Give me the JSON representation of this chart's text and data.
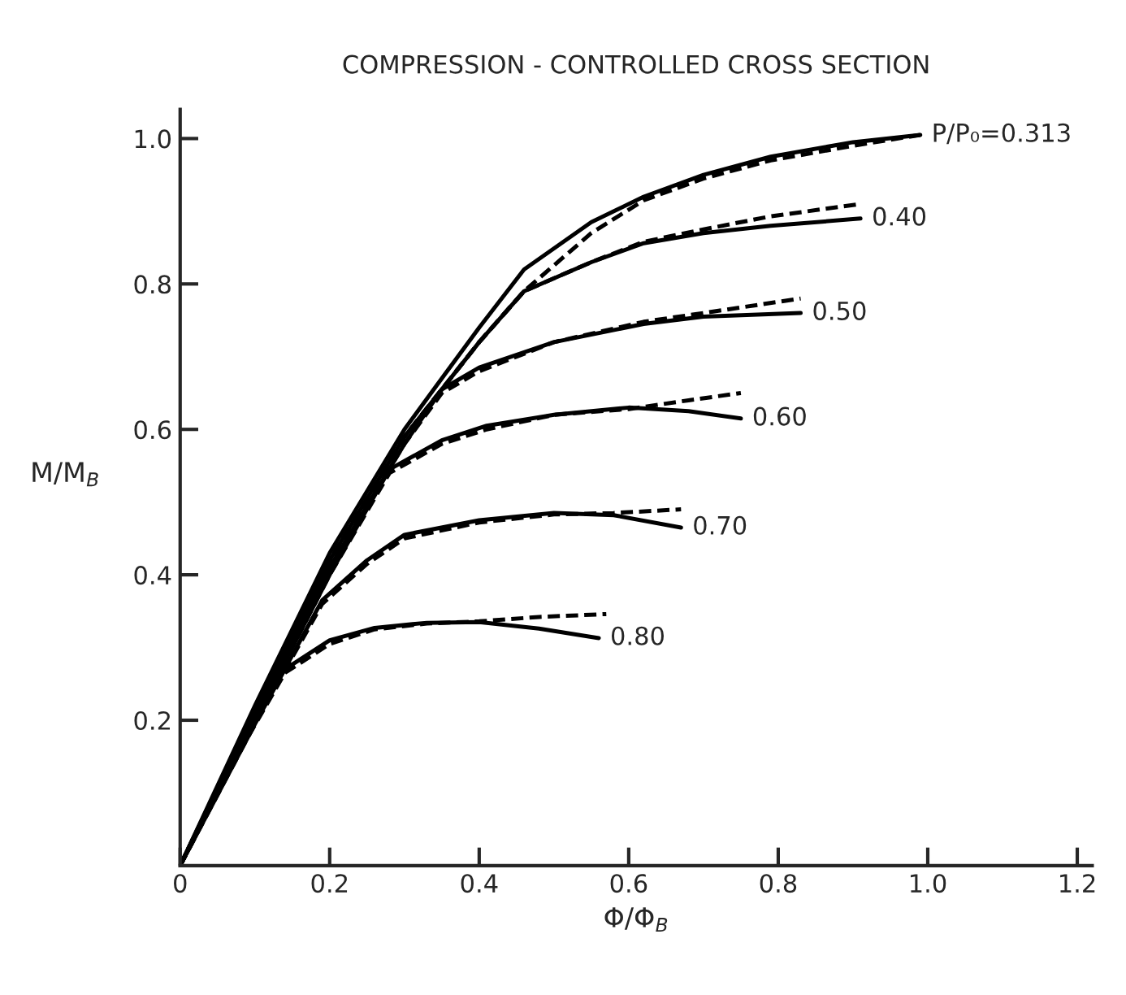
{
  "chart_data": {
    "type": "line",
    "title": "COMPRESSION - CONTROLLED CROSS SECTION",
    "xlabel": "Φ/Φ$_{B}$",
    "ylabel": "M/M$_{B}$",
    "xlim": [
      0,
      1.22
    ],
    "ylim": [
      0,
      1.04
    ],
    "xticks": [
      {
        "value": 0,
        "label": "0"
      },
      0.2,
      0.4,
      0.6,
      0.8,
      {
        "value": 1.0,
        "label": "1.0"
      },
      1.2
    ],
    "yticks": [
      0.2,
      0.4,
      0.6,
      0.8,
      {
        "value": 1.0,
        "label": "1.0"
      }
    ],
    "grid": false,
    "legend": false,
    "marker": "none",
    "series": [
      {
        "name": "P/P₀=0.313",
        "color": "#000000",
        "line_style": "solid",
        "x": [
          0,
          0.1,
          0.2,
          0.3,
          0.35,
          0.4,
          0.46,
          0.55,
          0.62,
          0.7,
          0.79,
          0.9,
          0.99
        ],
        "values": [
          0,
          0.22,
          0.43,
          0.6,
          0.67,
          0.74,
          0.82,
          0.885,
          0.92,
          0.95,
          0.975,
          0.995,
          1.005
        ]
      },
      {
        "color": "#000000",
        "line_style": "dashed",
        "x": [
          0,
          0.1,
          0.2,
          0.3,
          0.4,
          0.46,
          0.55,
          0.62,
          0.7,
          0.79,
          0.9,
          0.99
        ],
        "values": [
          0,
          0.21,
          0.42,
          0.59,
          0.72,
          0.79,
          0.87,
          0.915,
          0.945,
          0.97,
          0.99,
          1.005
        ]
      },
      {
        "name": "0.40",
        "color": "#000000",
        "line_style": "solid",
        "x": [
          0,
          0.1,
          0.2,
          0.3,
          0.4,
          0.46,
          0.55,
          0.62,
          0.7,
          0.79,
          0.91
        ],
        "values": [
          0,
          0.215,
          0.42,
          0.59,
          0.72,
          0.79,
          0.83,
          0.856,
          0.87,
          0.88,
          0.89
        ]
      },
      {
        "color": "#000000",
        "line_style": "dashed",
        "x": [
          0,
          0.1,
          0.2,
          0.3,
          0.4,
          0.46,
          0.55,
          0.62,
          0.7,
          0.79,
          0.91
        ],
        "values": [
          0,
          0.215,
          0.42,
          0.59,
          0.72,
          0.79,
          0.83,
          0.858,
          0.875,
          0.893,
          0.91
        ]
      },
      {
        "name": "0.50",
        "color": "#000000",
        "line_style": "solid",
        "x": [
          0,
          0.1,
          0.2,
          0.3,
          0.35,
          0.4,
          0.5,
          0.62,
          0.7,
          0.83
        ],
        "values": [
          0,
          0.21,
          0.41,
          0.58,
          0.655,
          0.685,
          0.72,
          0.745,
          0.755,
          0.76
        ]
      },
      {
        "color": "#000000",
        "line_style": "dashed",
        "x": [
          0,
          0.1,
          0.2,
          0.3,
          0.35,
          0.4,
          0.5,
          0.62,
          0.7,
          0.83
        ],
        "values": [
          0,
          0.21,
          0.41,
          0.58,
          0.65,
          0.68,
          0.72,
          0.748,
          0.76,
          0.78
        ]
      },
      {
        "name": "0.60",
        "color": "#000000",
        "line_style": "solid",
        "x": [
          0,
          0.1,
          0.2,
          0.28,
          0.35,
          0.41,
          0.5,
          0.6,
          0.68,
          0.75
        ],
        "values": [
          0,
          0.2,
          0.4,
          0.545,
          0.585,
          0.605,
          0.62,
          0.63,
          0.625,
          0.615
        ]
      },
      {
        "color": "#000000",
        "line_style": "dashed",
        "x": [
          0,
          0.1,
          0.2,
          0.28,
          0.35,
          0.41,
          0.5,
          0.6,
          0.68,
          0.75
        ],
        "values": [
          0,
          0.2,
          0.4,
          0.54,
          0.58,
          0.6,
          0.62,
          0.628,
          0.64,
          0.65
        ]
      },
      {
        "name": "0.70",
        "color": "#000000",
        "line_style": "solid",
        "x": [
          0,
          0.1,
          0.19,
          0.25,
          0.3,
          0.4,
          0.5,
          0.58,
          0.67
        ],
        "values": [
          0,
          0.195,
          0.365,
          0.42,
          0.455,
          0.475,
          0.485,
          0.482,
          0.465
        ]
      },
      {
        "color": "#000000",
        "line_style": "dashed",
        "x": [
          0,
          0.1,
          0.19,
          0.25,
          0.3,
          0.4,
          0.5,
          0.58,
          0.67
        ],
        "values": [
          0,
          0.195,
          0.36,
          0.415,
          0.45,
          0.472,
          0.483,
          0.485,
          0.49
        ]
      },
      {
        "name": "0.80",
        "color": "#000000",
        "line_style": "solid",
        "x": [
          0,
          0.07,
          0.14,
          0.2,
          0.26,
          0.33,
          0.4,
          0.48,
          0.56
        ],
        "values": [
          0,
          0.14,
          0.27,
          0.31,
          0.327,
          0.334,
          0.335,
          0.326,
          0.313
        ]
      },
      {
        "color": "#000000",
        "line_style": "dashed",
        "x": [
          0,
          0.07,
          0.14,
          0.2,
          0.26,
          0.33,
          0.4,
          0.48,
          0.57
        ],
        "values": [
          0,
          0.14,
          0.265,
          0.305,
          0.325,
          0.333,
          0.336,
          0.342,
          0.346
        ]
      }
    ]
  }
}
